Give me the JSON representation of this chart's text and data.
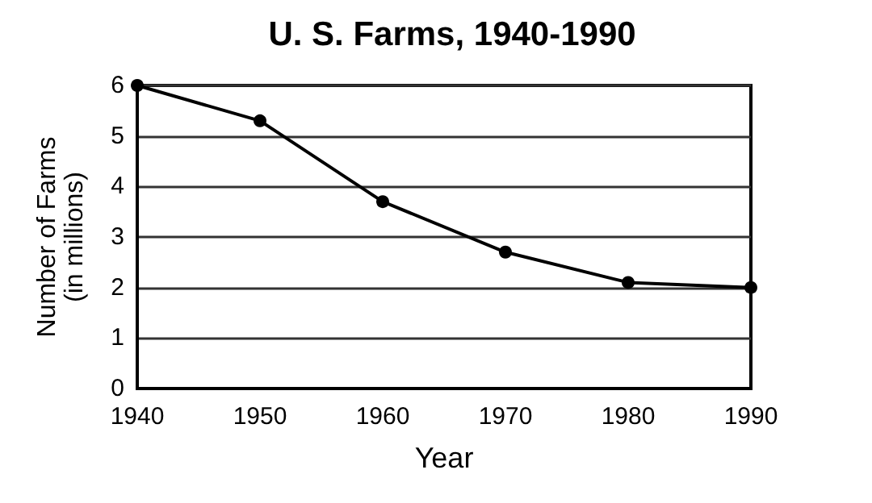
{
  "chart_data": {
    "type": "line",
    "title": "U. S. Farms, 1940-1990",
    "xlabel": "Year",
    "ylabel": "Number of Farms\n(in millions)",
    "x": [
      1940,
      1950,
      1960,
      1970,
      1980,
      1990
    ],
    "series": [
      {
        "color": "#000000",
        "values": [
          6.0,
          5.3,
          3.7,
          2.7,
          2.1,
          2.0
        ]
      }
    ],
    "xlim": [
      1940,
      1990
    ],
    "xticks": [
      1940,
      1950,
      1960,
      1970,
      1980,
      1990
    ],
    "ylim": [
      0,
      6
    ],
    "yticks": [
      0,
      1,
      2,
      3,
      4,
      5,
      6
    ],
    "grid": "y",
    "marker": "circle",
    "line_style": "solid"
  }
}
